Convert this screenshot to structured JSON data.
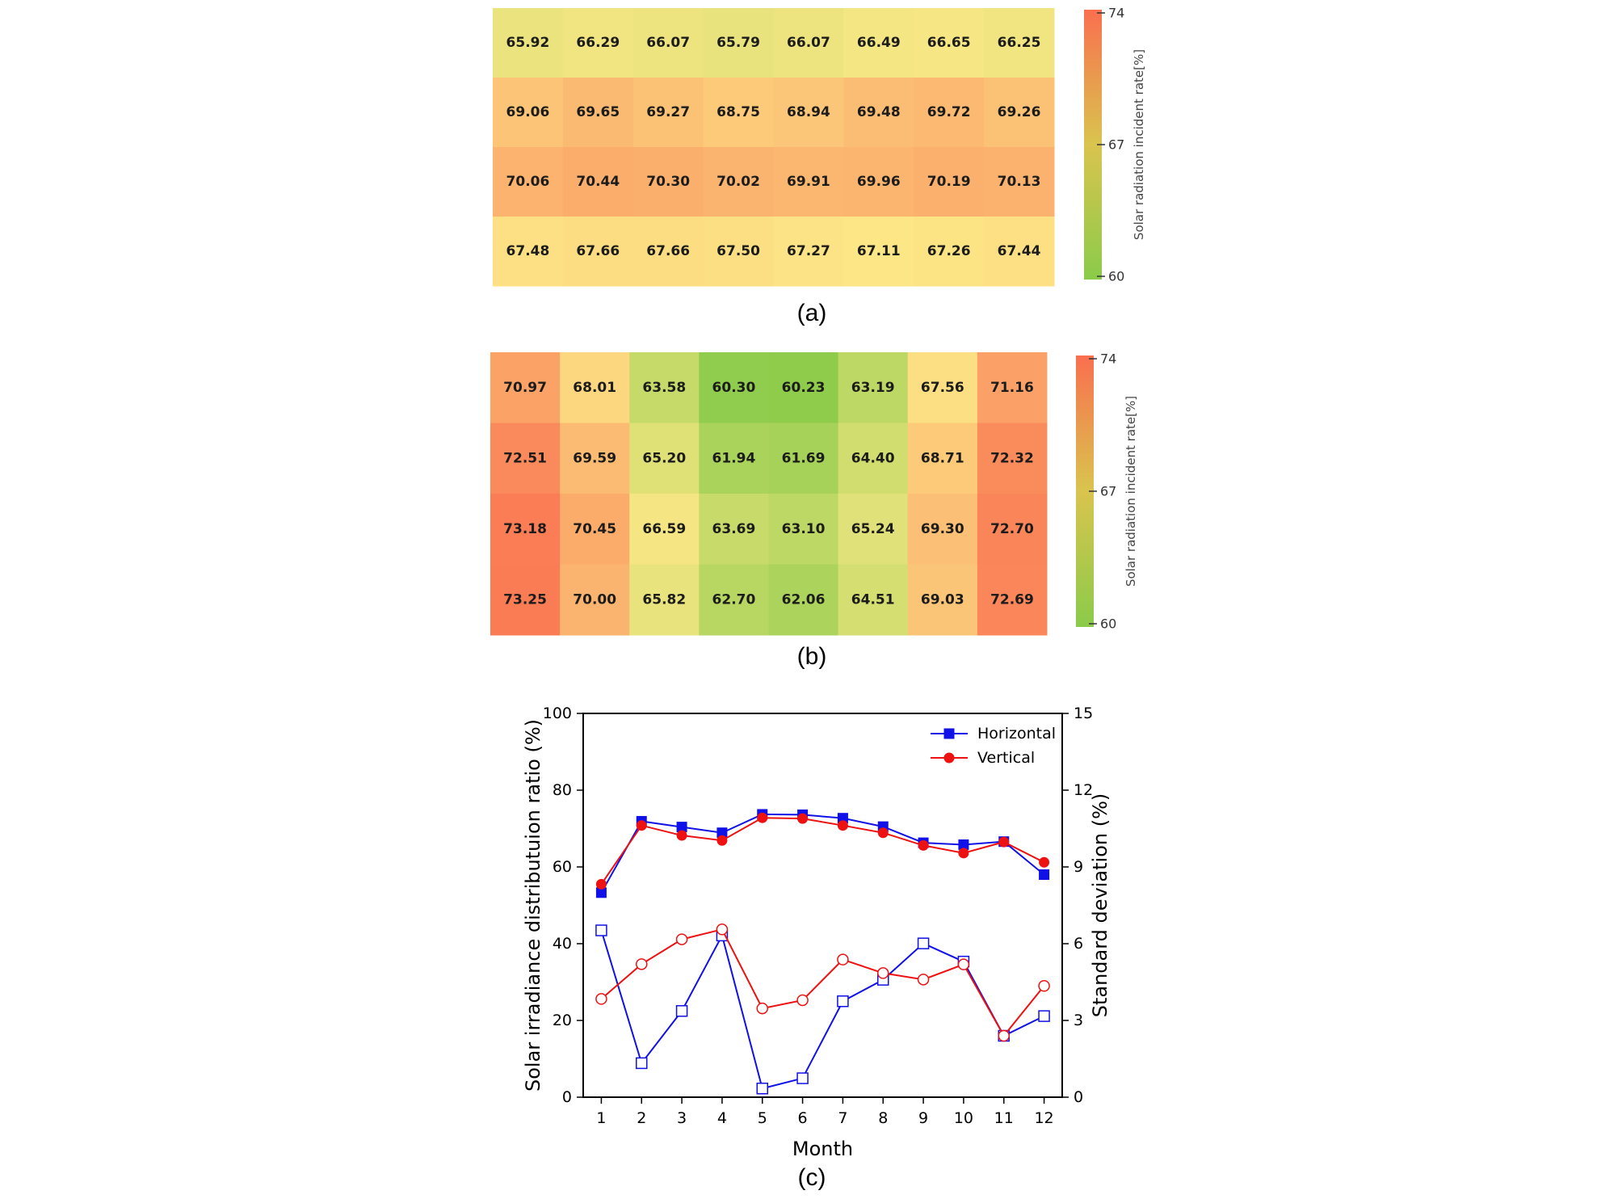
{
  "chart_data": [
    {
      "type": "heatmap",
      "panel_label": "(a)",
      "rows": 4,
      "cols": 8,
      "values": [
        [
          65.92,
          66.29,
          66.07,
          65.79,
          66.07,
          66.49,
          66.65,
          66.25
        ],
        [
          69.06,
          69.65,
          69.27,
          68.75,
          68.94,
          69.48,
          69.72,
          69.26
        ],
        [
          70.06,
          70.44,
          70.3,
          70.02,
          69.91,
          69.96,
          70.19,
          70.13
        ],
        [
          67.48,
          67.66,
          67.66,
          67.5,
          67.27,
          67.11,
          67.26,
          67.44
        ]
      ],
      "display_values": [
        [
          "65.92",
          "66.29",
          "66.07",
          "65.79",
          "66.07",
          "66.49",
          "66.65",
          "66.25"
        ],
        [
          "69.06",
          "69.65",
          "69.27",
          "68.75",
          "68.94",
          "69.48",
          "69.72",
          "69.26"
        ],
        [
          "70.06",
          "70.44",
          "70.30",
          "70.02",
          "69.91",
          "69.96",
          "70.19",
          "70.13"
        ],
        [
          "67.48",
          "67.66",
          "67.66",
          "67.50",
          "67.27",
          "67.11",
          "67.26",
          "67.44"
        ]
      ],
      "colorbar": {
        "label": "Solar radiation incident rate[%]",
        "min": 60,
        "max": 74,
        "ticks": [
          "74",
          "67",
          "60"
        ],
        "colors": [
          "#8bcb4a",
          "#fce887",
          "#fa6f4f"
        ]
      }
    },
    {
      "type": "heatmap",
      "panel_label": "(b)",
      "rows": 4,
      "cols": 8,
      "values": [
        [
          70.97,
          68.01,
          63.58,
          60.3,
          60.23,
          63.19,
          67.56,
          71.16
        ],
        [
          72.51,
          69.59,
          65.2,
          61.94,
          61.69,
          64.4,
          68.71,
          72.32
        ],
        [
          73.18,
          70.45,
          66.59,
          63.69,
          63.1,
          65.24,
          69.3,
          72.7
        ],
        [
          73.25,
          70.0,
          65.82,
          62.7,
          62.06,
          64.51,
          69.03,
          72.69
        ]
      ],
      "display_values": [
        [
          "70.97",
          "68.01",
          "63.58",
          "60.30",
          "60.23",
          "63.19",
          "67.56",
          "71.16"
        ],
        [
          "72.51",
          "69.59",
          "65.20",
          "61.94",
          "61.69",
          "64.40",
          "68.71",
          "72.32"
        ],
        [
          "73.18",
          "70.45",
          "66.59",
          "63.69",
          "63.10",
          "65.24",
          "69.30",
          "72.70"
        ],
        [
          "73.25",
          "70.00",
          "65.82",
          "62.70",
          "62.06",
          "64.51",
          "69.03",
          "72.69"
        ]
      ],
      "colorbar": {
        "label": "Solar radiation incident rate[%]",
        "min": 60,
        "max": 74,
        "ticks": [
          "74",
          "67",
          "60"
        ],
        "colors": [
          "#8bcb4a",
          "#fce887",
          "#fa6f4f"
        ]
      }
    },
    {
      "type": "line",
      "panel_label": "(c)",
      "xlabel": "Month",
      "ylabel": "Solar irradiance distributuion ratio (%)",
      "y2label": "Standard deviation (%)",
      "x": [
        1,
        2,
        3,
        4,
        5,
        6,
        7,
        8,
        9,
        10,
        11,
        12
      ],
      "xticks": [
        "1",
        "2",
        "3",
        "4",
        "5",
        "6",
        "7",
        "8",
        "9",
        "10",
        "11",
        "12"
      ],
      "ylim": [
        0,
        100
      ],
      "yticks": [
        "0",
        "20",
        "40",
        "60",
        "80",
        "100"
      ],
      "y2lim": [
        0,
        15
      ],
      "y2ticks": [
        "0",
        "3",
        "6",
        "9",
        "12",
        "15"
      ],
      "legend": [
        "Horizontal",
        "Vertical"
      ],
      "legend_position": "top-right",
      "series": [
        {
          "name": "Horizontal",
          "axis": "left",
          "color": "#1010e8",
          "marker": "filled-square",
          "values": [
            53.3,
            71.9,
            70.4,
            68.9,
            73.7,
            73.6,
            72.7,
            70.5,
            66.3,
            65.8,
            66.6,
            58.0
          ]
        },
        {
          "name": "Vertical",
          "axis": "left",
          "color": "#ee1111",
          "marker": "filled-circle",
          "values": [
            55.5,
            70.8,
            68.2,
            66.9,
            72.8,
            72.6,
            70.8,
            68.9,
            65.6,
            63.6,
            66.5,
            61.2
          ]
        },
        {
          "name": "Horizontal",
          "axis": "right",
          "color": "#1010e8",
          "marker": "open-square",
          "values": [
            6.52,
            1.33,
            3.37,
            6.32,
            0.34,
            0.74,
            3.75,
            4.59,
            6.01,
            5.3,
            2.4,
            3.17
          ]
        },
        {
          "name": "Vertical",
          "axis": "right",
          "color": "#ee1111",
          "marker": "open-circle",
          "values": [
            3.84,
            5.2,
            6.17,
            6.56,
            3.47,
            3.79,
            5.38,
            4.85,
            4.6,
            5.19,
            2.4,
            4.35
          ]
        }
      ]
    }
  ]
}
